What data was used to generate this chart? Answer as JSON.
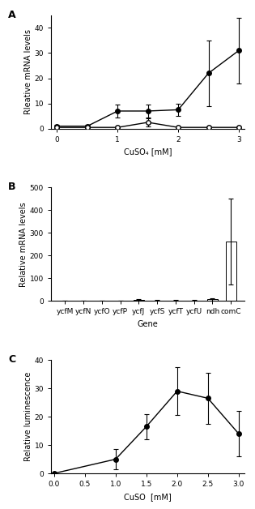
{
  "panel_A": {
    "title": "A",
    "xlabel": "CuSO₄ [mM]",
    "ylabel": "Rleative mRNA levels",
    "xlim": [
      -0.1,
      3.1
    ],
    "ylim": [
      0,
      45
    ],
    "yticks": [
      0,
      10,
      20,
      30,
      40
    ],
    "xticks": [
      0,
      1,
      2,
      3
    ],
    "comR_x": [
      0,
      0.5,
      1,
      1.5,
      2,
      2.5,
      3
    ],
    "comR_y": [
      1.0,
      1.0,
      7.0,
      7.0,
      7.5,
      22.0,
      31.0
    ],
    "comR_yerr": [
      0.5,
      0.5,
      2.5,
      2.5,
      2.5,
      13.0,
      13.0
    ],
    "comC_x": [
      0,
      0.5,
      1,
      1.5,
      2,
      2.5,
      3
    ],
    "comC_y": [
      0.5,
      0.5,
      0.5,
      2.5,
      0.5,
      0.5,
      0.5
    ],
    "comC_yerr": [
      0.3,
      0.3,
      0.3,
      1.5,
      0.3,
      0.3,
      0.3
    ]
  },
  "panel_B": {
    "title": "B",
    "xlabel": "Gene",
    "ylabel": "Relative mRNA levels",
    "ylim": [
      0,
      500
    ],
    "yticks": [
      0,
      100,
      200,
      300,
      400,
      500
    ],
    "categories": [
      "ycfM",
      "ycfN",
      "ycfO",
      "ycfP",
      "ycfJ",
      "ycfS",
      "ycfT",
      "ycfU",
      "ndh",
      "comC"
    ],
    "values": [
      1.0,
      1.0,
      1.5,
      1.0,
      5.0,
      2.0,
      2.0,
      2.0,
      8.0,
      262.0
    ],
    "yerr": [
      1.0,
      1.0,
      1.0,
      0.5,
      3.0,
      1.5,
      1.5,
      1.5,
      5.0,
      190.0
    ]
  },
  "panel_C": {
    "title": "C",
    "xlabel": "CuSO  [mM]",
    "ylabel": "Relative luminescence",
    "xlim": [
      -0.05,
      3.1
    ],
    "ylim": [
      0,
      40
    ],
    "yticks": [
      0,
      10,
      20,
      30,
      40
    ],
    "xticks": [
      0.0,
      0.5,
      1.0,
      1.5,
      2.0,
      2.5,
      3.0
    ],
    "x": [
      0.0,
      1.0,
      1.5,
      2.0,
      2.5,
      3.0
    ],
    "y": [
      0.0,
      5.0,
      16.5,
      29.0,
      26.5,
      14.0
    ],
    "yerr": [
      0.3,
      3.5,
      4.5,
      8.5,
      9.0,
      8.0
    ]
  },
  "line_color": "#000000",
  "bar_color": "#ffffff",
  "bar_edgecolor": "#000000",
  "fontsize_label": 7,
  "fontsize_tick": 6.5,
  "fontsize_panel": 9
}
